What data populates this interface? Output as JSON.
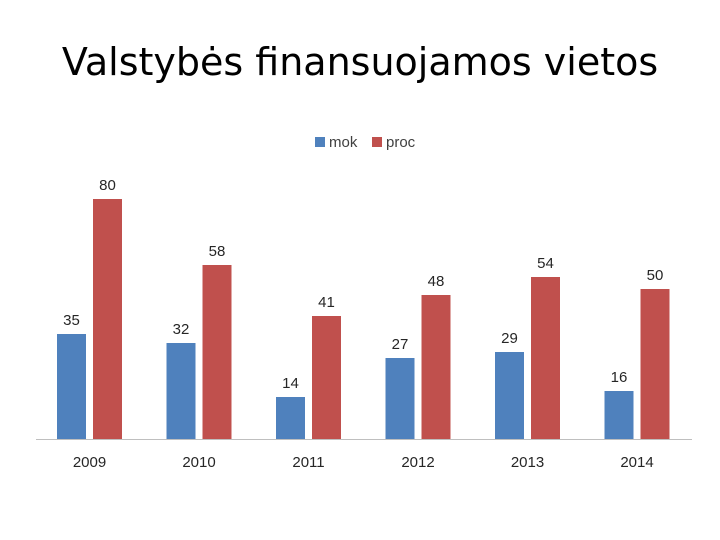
{
  "slide": {
    "title": "Valstybės finansuojamos vietos"
  },
  "chart_data": {
    "type": "bar",
    "categories": [
      "2009",
      "2010",
      "2011",
      "2012",
      "2013",
      "2014"
    ],
    "series": [
      {
        "name": "mok",
        "color": "#4F81BD",
        "values": [
          35,
          32,
          14,
          27,
          29,
          16
        ]
      },
      {
        "name": "proc",
        "color": "#C0504D",
        "values": [
          80,
          58,
          41,
          48,
          54,
          50
        ]
      }
    ],
    "title": "",
    "xlabel": "",
    "ylabel": "",
    "ylim": [
      0,
      80
    ],
    "grid": false,
    "legend_position": "top",
    "data_labels": true
  }
}
